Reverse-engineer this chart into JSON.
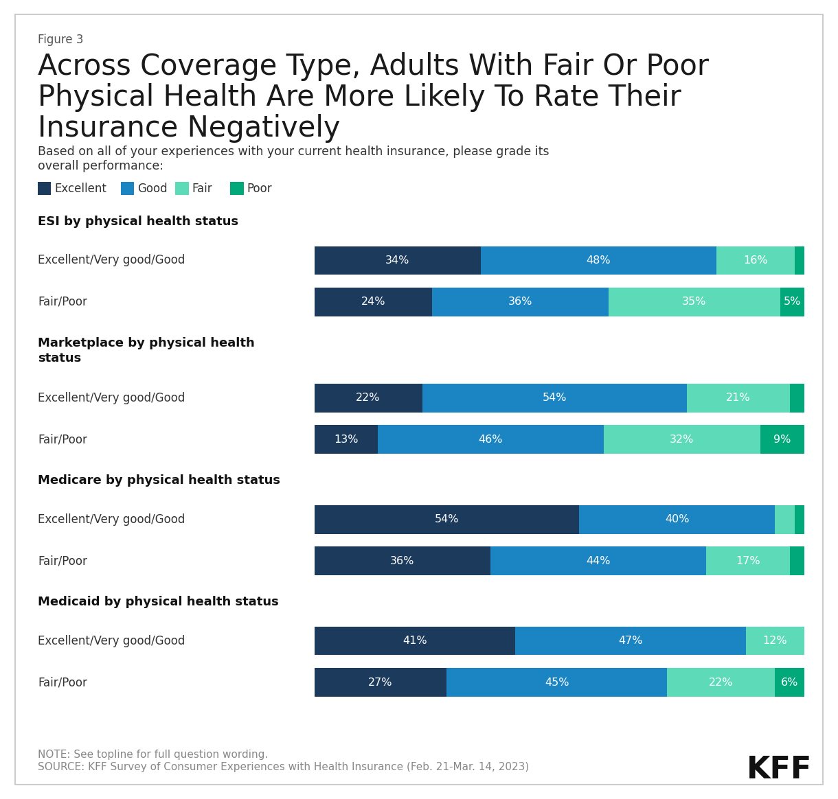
{
  "figure_label": "Figure 3",
  "title_line1": "Across Coverage Type, Adults With Fair Or Poor",
  "title_line2": "Physical Health Are More Likely To Rate Their",
  "title_line3": "Insurance Negatively",
  "subtitle_line1": "Based on all of your experiences with your current health insurance, please grade its",
  "subtitle_line2": "overall performance:",
  "colors": {
    "excellent": "#1b3a5c",
    "good": "#1b85c4",
    "fair": "#5ddbb8",
    "poor": "#00a87a"
  },
  "groups": [
    {
      "header": "ESI by physical health status",
      "header_lines": 1,
      "rows": [
        {
          "label": "Excellent/Very good/Good",
          "excellent": 34,
          "good": 48,
          "fair": 16,
          "poor": 2
        },
        {
          "label": "Fair/Poor",
          "excellent": 24,
          "good": 36,
          "fair": 35,
          "poor": 5
        }
      ]
    },
    {
      "header": "Marketplace by physical health\nstatus",
      "header_lines": 2,
      "rows": [
        {
          "label": "Excellent/Very good/Good",
          "excellent": 22,
          "good": 54,
          "fair": 21,
          "poor": 3
        },
        {
          "label": "Fair/Poor",
          "excellent": 13,
          "good": 46,
          "fair": 32,
          "poor": 9
        }
      ]
    },
    {
      "header": "Medicare by physical health status",
      "header_lines": 1,
      "rows": [
        {
          "label": "Excellent/Very good/Good",
          "excellent": 54,
          "good": 40,
          "fair": 4,
          "poor": 2
        },
        {
          "label": "Fair/Poor",
          "excellent": 36,
          "good": 44,
          "fair": 17,
          "poor": 3
        }
      ]
    },
    {
      "header": "Medicaid by physical health status",
      "header_lines": 1,
      "rows": [
        {
          "label": "Excellent/Very good/Good",
          "excellent": 41,
          "good": 47,
          "fair": 12,
          "poor": 0
        },
        {
          "label": "Fair/Poor",
          "excellent": 27,
          "good": 45,
          "fair": 22,
          "poor": 6
        }
      ]
    }
  ],
  "note": "NOTE: See topline for full question wording.",
  "source": "SOURCE: KFF Survey of Consumer Experiences with Health Insurance (Feb. 21-Mar. 14, 2023)",
  "background_color": "#ffffff",
  "border_color": "#cccccc"
}
